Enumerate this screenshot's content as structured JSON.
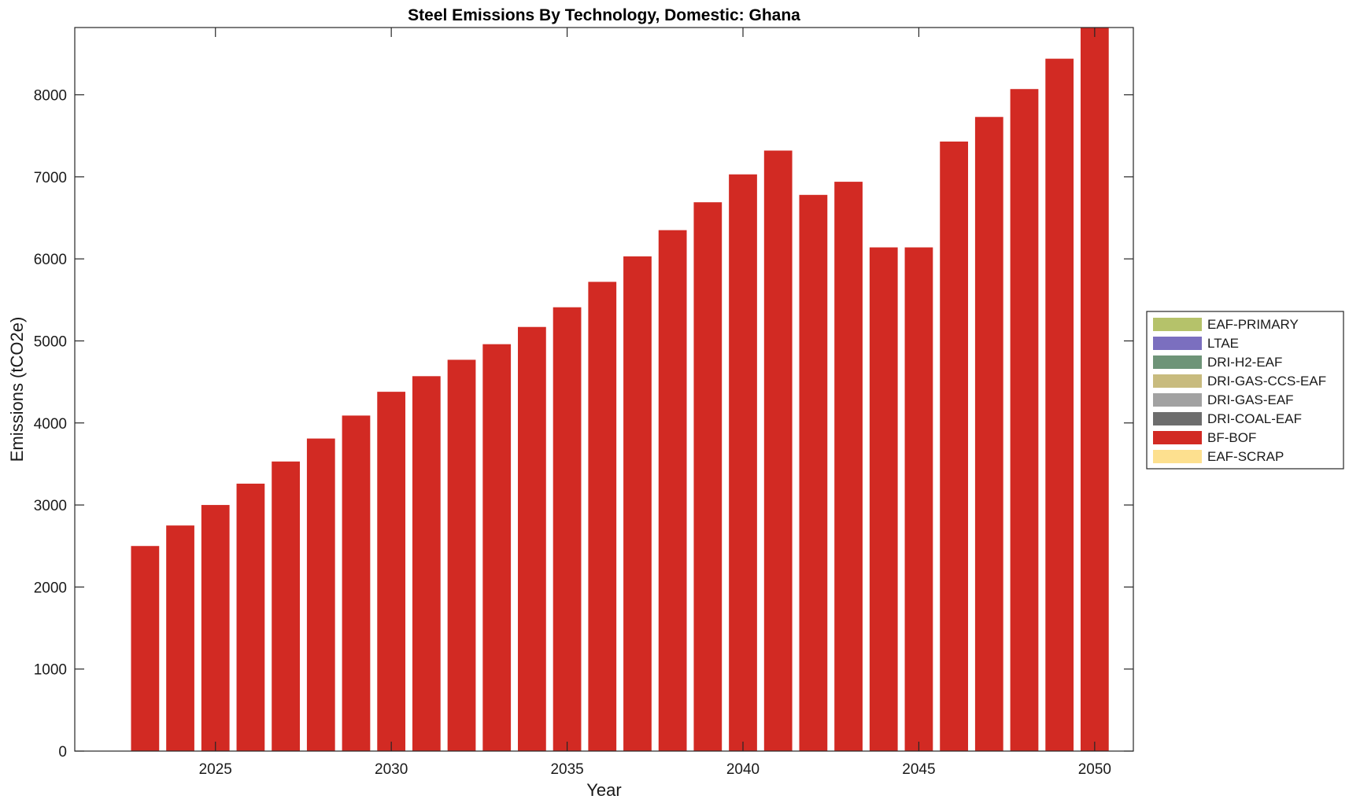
{
  "chart_data": {
    "type": "bar",
    "stacked": true,
    "title": "Steel Emissions By Technology, Domestic: Ghana",
    "xlabel": "Year",
    "ylabel": "Emissions (tCO2e)",
    "xlim": [
      2021,
      2051.1
    ],
    "ylim": [
      0,
      8820
    ],
    "xticks": [
      2025,
      2030,
      2035,
      2040,
      2045,
      2050
    ],
    "yticks": [
      0,
      1000,
      2000,
      3000,
      4000,
      5000,
      6000,
      7000,
      8000
    ],
    "grid": false,
    "legend_position": "outside-right",
    "categories": [
      2023,
      2024,
      2025,
      2026,
      2027,
      2028,
      2029,
      2030,
      2031,
      2032,
      2033,
      2034,
      2035,
      2036,
      2037,
      2038,
      2039,
      2040,
      2041,
      2042,
      2043,
      2044,
      2045,
      2046,
      2047,
      2048,
      2049,
      2050
    ],
    "series": [
      {
        "name": "EAF-PRIMARY",
        "color": "#b5c26a",
        "values": [
          0,
          0,
          0,
          0,
          0,
          0,
          0,
          0,
          0,
          0,
          0,
          0,
          0,
          0,
          0,
          0,
          0,
          0,
          0,
          0,
          0,
          0,
          0,
          0,
          0,
          0,
          0,
          0
        ]
      },
      {
        "name": "LTAE",
        "color": "#7b6fbf",
        "values": [
          0,
          0,
          0,
          0,
          0,
          0,
          0,
          0,
          0,
          0,
          0,
          0,
          0,
          0,
          0,
          0,
          0,
          0,
          0,
          0,
          0,
          0,
          0,
          0,
          0,
          0,
          0,
          0
        ]
      },
      {
        "name": "DRI-H2-EAF",
        "color": "#6e9478",
        "values": [
          0,
          0,
          0,
          0,
          0,
          0,
          0,
          0,
          0,
          0,
          0,
          0,
          0,
          0,
          0,
          0,
          0,
          0,
          0,
          0,
          0,
          0,
          0,
          0,
          0,
          0,
          0,
          0
        ]
      },
      {
        "name": "DRI-GAS-CCS-EAF",
        "color": "#c8bb7e",
        "values": [
          0,
          0,
          0,
          0,
          0,
          0,
          0,
          0,
          0,
          0,
          0,
          0,
          0,
          0,
          0,
          0,
          0,
          0,
          0,
          0,
          0,
          0,
          0,
          0,
          0,
          0,
          0,
          0
        ]
      },
      {
        "name": "DRI-GAS-EAF",
        "color": "#a2a2a2",
        "values": [
          0,
          0,
          0,
          0,
          0,
          0,
          0,
          0,
          0,
          0,
          0,
          0,
          0,
          0,
          0,
          0,
          0,
          0,
          0,
          0,
          0,
          0,
          0,
          0,
          0,
          0,
          0,
          0
        ]
      },
      {
        "name": "DRI-COAL-EAF",
        "color": "#6d6d6d",
        "values": [
          0,
          0,
          0,
          0,
          0,
          0,
          0,
          0,
          0,
          0,
          0,
          0,
          0,
          0,
          0,
          0,
          0,
          0,
          0,
          0,
          0,
          0,
          0,
          0,
          0,
          0,
          0,
          0
        ]
      },
      {
        "name": "BF-BOF",
        "color": "#d22a23",
        "values": [
          2500,
          2750,
          3000,
          3260,
          3530,
          3810,
          4090,
          4380,
          4570,
          4770,
          4960,
          5170,
          5410,
          5720,
          6030,
          6350,
          6690,
          7030,
          7320,
          6780,
          6940,
          6140,
          6140,
          7430,
          7730,
          8070,
          8440,
          8820
        ]
      },
      {
        "name": "EAF-SCRAP",
        "color": "#fde08f",
        "values": [
          0,
          0,
          0,
          0,
          0,
          0,
          0,
          0,
          0,
          0,
          0,
          0,
          0,
          0,
          0,
          0,
          0,
          0,
          0,
          0,
          0,
          0,
          0,
          0,
          0,
          0,
          0,
          0
        ]
      }
    ]
  }
}
